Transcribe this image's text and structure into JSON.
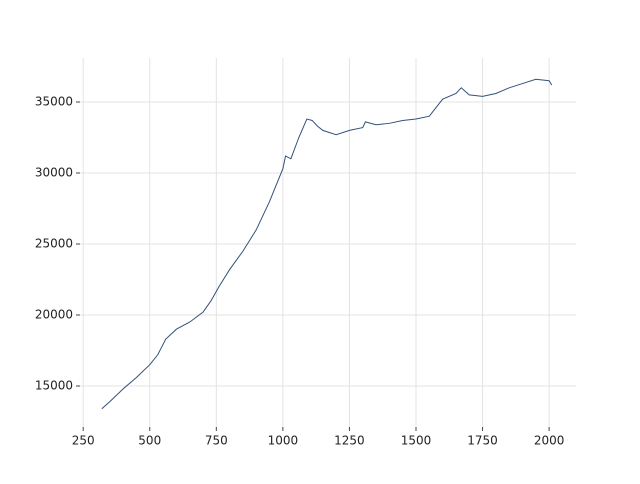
{
  "chart_data": {
    "type": "line",
    "x": [
      320,
      350,
      400,
      450,
      500,
      530,
      560,
      600,
      650,
      700,
      730,
      760,
      800,
      850,
      900,
      950,
      1000,
      1010,
      1030,
      1060,
      1090,
      1110,
      1130,
      1150,
      1200,
      1250,
      1300,
      1310,
      1350,
      1400,
      1450,
      1500,
      1550,
      1600,
      1650,
      1670,
      1700,
      1750,
      1800,
      1850,
      1900,
      1950,
      2000,
      2010
    ],
    "series": [
      {
        "color": "#34507a",
        "values": [
          13400,
          13900,
          14800,
          15600,
          16500,
          17200,
          18300,
          19000,
          19500,
          20200,
          21000,
          22000,
          23200,
          24500,
          26000,
          28000,
          30300,
          31200,
          31000,
          32500,
          33800,
          33700,
          33300,
          33000,
          32700,
          33000,
          33200,
          33600,
          33400,
          33500,
          33700,
          33800,
          34000,
          35200,
          35600,
          36000,
          35500,
          35400,
          35600,
          36000,
          36300,
          36600,
          36500,
          36200
        ]
      }
    ],
    "xlim": [
      238,
      2101
    ],
    "xticks": [
      250,
      500,
      750,
      1000,
      1250,
      1500,
      1750,
      2000
    ],
    "ylim": [
      12113,
      38099
    ],
    "yticks": [
      15000,
      20000,
      25000,
      30000,
      35000
    ],
    "grid": true
  }
}
